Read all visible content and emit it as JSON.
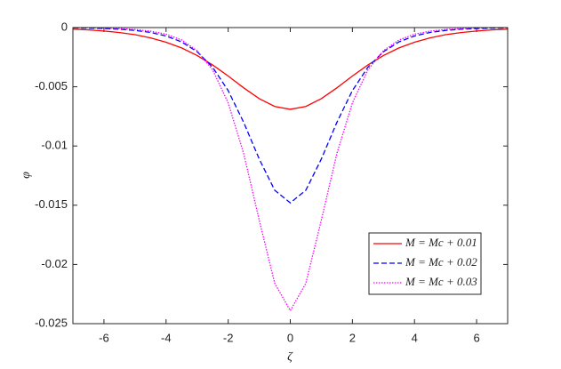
{
  "chart_data": {
    "type": "line",
    "x_label": "ζ",
    "y_label": "φ",
    "x": [
      -7,
      -6.5,
      -6,
      -5.5,
      -5,
      -4.5,
      -4,
      -3.5,
      -3,
      -2.5,
      -2,
      -1.5,
      -1,
      -0.5,
      0,
      0.5,
      1,
      1.5,
      2,
      2.5,
      3,
      3.5,
      4,
      4.5,
      5,
      5.5,
      6,
      6.5,
      7
    ],
    "series": [
      {
        "name": "M = Mc + 0.01",
        "color": "#ff0000",
        "dash": "solid",
        "values": [
          -0.00014,
          -0.0002,
          -0.00029,
          -0.00042,
          -0.0006,
          -0.00087,
          -0.00124,
          -0.00172,
          -0.00236,
          -0.00316,
          -0.00409,
          -0.00509,
          -0.006,
          -0.00666,
          -0.0069,
          -0.00666,
          -0.006,
          -0.00509,
          -0.00409,
          -0.00316,
          -0.00236,
          -0.00172,
          -0.00124,
          -0.00087,
          -0.0006,
          -0.00042,
          -0.00029,
          -0.0002,
          -0.00014
        ]
      },
      {
        "name": "M = Mc + 0.02",
        "color": "#0000ff",
        "dash": "dashed",
        "values": [
          -3e-05,
          -5e-05,
          -8e-05,
          -0.00014,
          -0.00024,
          -0.00041,
          -0.00071,
          -0.00121,
          -0.00204,
          -0.00335,
          -0.00532,
          -0.00801,
          -0.0111,
          -0.01374,
          -0.0148,
          -0.01374,
          -0.0111,
          -0.00801,
          -0.00532,
          -0.00335,
          -0.00204,
          -0.00121,
          -0.00071,
          -0.00041,
          -0.00024,
          -0.00014,
          -8e-05,
          -5e-05,
          -3e-05
        ]
      },
      {
        "name": "M = Mc + 0.03",
        "color": "#ff00ff",
        "dash": "dotted",
        "values": [
          -1e-05,
          -2e-05,
          -4e-05,
          -8e-05,
          -0.00016,
          -0.0003,
          -0.00056,
          -0.00105,
          -0.00195,
          -0.00357,
          -0.00636,
          -0.01064,
          -0.01626,
          -0.0216,
          -0.0239,
          -0.0216,
          -0.01626,
          -0.01064,
          -0.00636,
          -0.00357,
          -0.00195,
          -0.00105,
          -0.00056,
          -0.0003,
          -0.00016,
          -8e-05,
          -4e-05,
          -2e-05,
          -1e-05
        ]
      }
    ],
    "xlim": [
      -7,
      7
    ],
    "xticks": [
      -6,
      -4,
      -2,
      0,
      2,
      4,
      6
    ],
    "ylim": [
      -0.025,
      0
    ],
    "yticks": [
      -0.025,
      -0.02,
      -0.015,
      -0.01,
      -0.005,
      0
    ],
    "grid": false,
    "legend": "lower right"
  }
}
